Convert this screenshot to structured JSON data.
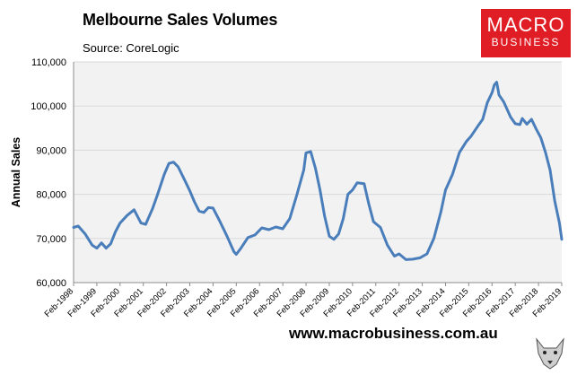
{
  "header": {
    "title": "Melbourne Sales Volumes",
    "source": "Source: CoreLogic"
  },
  "logo": {
    "line1": "MACRO",
    "line2": "BUSINESS"
  },
  "footer": {
    "url": "www.macrobusiness.com.au"
  },
  "colors": {
    "line": "#4a7ebb",
    "plot_bg": "#f2f2f2",
    "logo_bg": "#e01d24",
    "grid": "#d9d9d9"
  },
  "icons": {
    "mascot": "wolf-icon"
  },
  "chart_data": {
    "type": "line",
    "ylabel": "Annual Sales",
    "ylim": [
      60000,
      110000
    ],
    "yticks": [
      60000,
      70000,
      80000,
      90000,
      100000,
      110000
    ],
    "ytick_labels": [
      "60,000",
      "70,000",
      "80,000",
      "90,000",
      "100,000",
      "110,000"
    ],
    "xlim": [
      1998.0,
      2019.0
    ],
    "xtick_labels": [
      "Feb-1998",
      "Feb-1999",
      "Feb-2000",
      "Feb-2001",
      "Feb-2002",
      "Feb-2003",
      "Feb-2004",
      "Feb-2005",
      "Feb-2006",
      "Feb-2007",
      "Feb-2008",
      "Feb-2009",
      "Feb-2010",
      "Feb-2011",
      "Feb-2012",
      "Feb-2013",
      "Feb-2014",
      "Feb-2015",
      "Feb-2016",
      "Feb-2017",
      "Feb-2018",
      "Feb-2019"
    ],
    "grid": "horizontal",
    "series": [
      {
        "x": [
          1998.0,
          1998.2,
          1998.5,
          1998.8,
          1999.0,
          1999.2,
          1999.4,
          1999.6,
          1999.8,
          2000.0,
          2000.3,
          2000.6,
          2000.9,
          2001.1,
          2001.4,
          2001.6,
          2001.9,
          2002.1,
          2002.3,
          2002.5,
          2002.8,
          2003.0,
          2003.2,
          2003.4,
          2003.6,
          2003.8,
          2004.0,
          2004.3,
          2004.6,
          2004.9,
          2005.0,
          2005.2,
          2005.5,
          2005.8,
          2006.1,
          2006.4,
          2006.7,
          2007.0,
          2007.3,
          2007.6,
          2007.9,
          2008.0,
          2008.2,
          2008.4,
          2008.6,
          2008.8,
          2009.0,
          2009.2,
          2009.4,
          2009.6,
          2009.8,
          2010.0,
          2010.2,
          2010.5,
          2010.7,
          2010.9,
          2011.2,
          2011.5,
          2011.8,
          2012.0,
          2012.3,
          2012.6,
          2012.9,
          2013.2,
          2013.5,
          2013.8,
          2014.0,
          2014.3,
          2014.6,
          2014.9,
          2015.1,
          2015.4,
          2015.6,
          2015.8,
          2016.0,
          2016.1,
          2016.2,
          2016.3,
          2016.5,
          2016.8,
          2017.0,
          2017.2,
          2017.3,
          2017.5,
          2017.7,
          2017.9,
          2018.1,
          2018.3,
          2018.5,
          2018.7,
          2018.9,
          2019.0
        ],
        "y": [
          72500,
          72800,
          71000,
          68500,
          67800,
          69000,
          67800,
          68800,
          71500,
          73500,
          75200,
          76500,
          73500,
          73200,
          76800,
          79800,
          84500,
          87000,
          87300,
          86200,
          83000,
          80800,
          78300,
          76200,
          75900,
          77000,
          76900,
          73800,
          70500,
          67000,
          66400,
          67800,
          70200,
          70800,
          72400,
          72000,
          72600,
          72200,
          74500,
          79800,
          85500,
          89400,
          89700,
          86000,
          81000,
          75000,
          70500,
          69800,
          71000,
          74500,
          80000,
          81000,
          82600,
          82400,
          77800,
          73800,
          72500,
          68500,
          66000,
          66500,
          65200,
          65300,
          65600,
          66500,
          70000,
          76000,
          81000,
          84500,
          89500,
          92000,
          93200,
          95500,
          97000,
          100800,
          103000,
          104800,
          105400,
          102500,
          101000,
          97500,
          96000,
          95800,
          97200,
          95900,
          97000,
          94800,
          92800,
          89500,
          85500,
          78500,
          73500,
          69800
        ]
      }
    ]
  }
}
